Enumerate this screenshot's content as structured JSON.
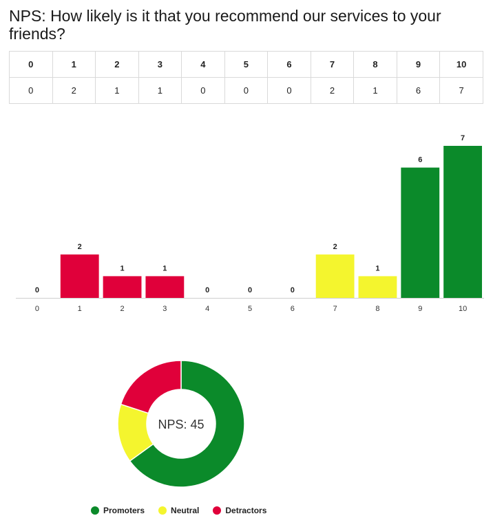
{
  "title": "NPS: How likely is it that you recommend our services to your friends?",
  "table": {
    "headers": [
      "0",
      "1",
      "2",
      "3",
      "4",
      "5",
      "6",
      "7",
      "8",
      "9",
      "10"
    ],
    "counts": [
      "0",
      "2",
      "1",
      "1",
      "0",
      "0",
      "0",
      "2",
      "1",
      "6",
      "7"
    ]
  },
  "colors": {
    "detractor": "#e0003a",
    "neutral": "#f4f52e",
    "promoter": "#0b8a2a"
  },
  "chart_data": [
    {
      "type": "bar",
      "categories": [
        "0",
        "1",
        "2",
        "3",
        "4",
        "5",
        "6",
        "7",
        "8",
        "9",
        "10"
      ],
      "values": [
        0,
        2,
        1,
        1,
        0,
        0,
        0,
        2,
        1,
        6,
        7
      ],
      "groups": [
        "detractor",
        "detractor",
        "detractor",
        "detractor",
        "detractor",
        "detractor",
        "detractor",
        "neutral",
        "neutral",
        "promoter",
        "promoter"
      ],
      "title": "",
      "xlabel": "",
      "ylabel": "",
      "ylim": [
        0,
        7
      ],
      "grid": false
    },
    {
      "type": "pie",
      "donut": true,
      "center_label": "NPS: 45",
      "slices": [
        {
          "name": "Promoters",
          "value": 13,
          "color": "#0b8a2a"
        },
        {
          "name": "Neutral",
          "value": 3,
          "color": "#f4f52e"
        },
        {
          "name": "Detractors",
          "value": 4,
          "color": "#e0003a"
        }
      ],
      "legend_position": "bottom"
    }
  ]
}
